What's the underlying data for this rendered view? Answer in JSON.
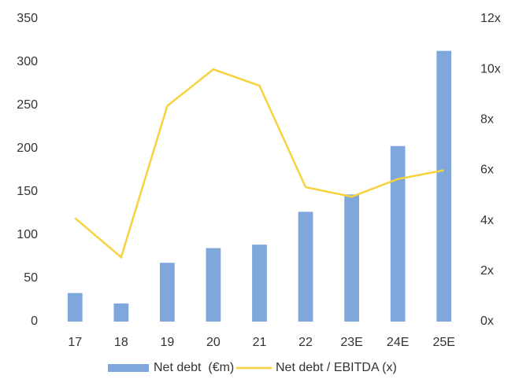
{
  "chart_data": {
    "type": "bar",
    "categories": [
      "17",
      "18",
      "19",
      "20",
      "21",
      "22",
      "23E",
      "24E",
      "25E"
    ],
    "series": [
      {
        "name": "Net debt  (€m)",
        "type": "bar",
        "color": "#7fa7dc",
        "values": [
          33,
          21,
          68,
          85,
          89,
          127,
          147,
          203,
          313
        ]
      },
      {
        "name": "Net debt / EBITDA (x)",
        "type": "line",
        "axis": "y2",
        "color": "#f7d23e",
        "values": [
          4.1,
          2.55,
          8.55,
          10.0,
          9.35,
          5.33,
          4.95,
          5.65,
          6.0
        ]
      }
    ],
    "ylim": [
      0,
      350
    ],
    "yticks": [
      0,
      50,
      100,
      150,
      200,
      250,
      300,
      350
    ],
    "y2lim": [
      0,
      12
    ],
    "y2ticks": [
      {
        "value": 0,
        "label": "0x"
      },
      {
        "value": 2,
        "label": "2x"
      },
      {
        "value": 4,
        "label": "4x"
      },
      {
        "value": 6,
        "label": "6x"
      },
      {
        "value": 8,
        "label": "8x"
      },
      {
        "value": 10,
        "label": "10x"
      },
      {
        "value": 12,
        "label": "12x"
      }
    ],
    "grid": false,
    "legend": "bottom"
  }
}
